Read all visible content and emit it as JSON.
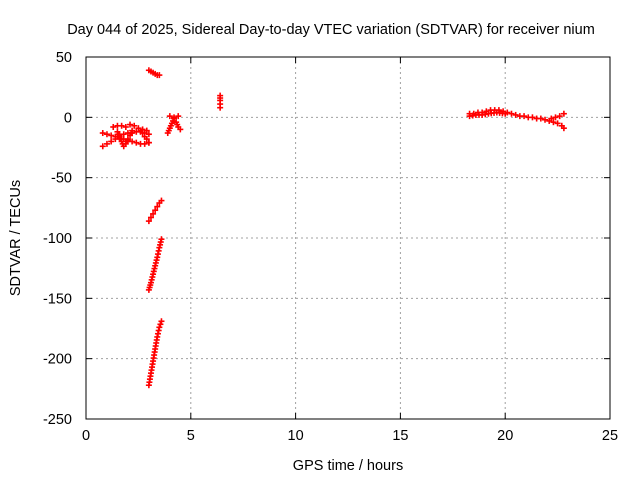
{
  "chart_data": {
    "type": "scatter",
    "title": "Day 044 of 2025, Sidereal Day-to-day VTEC variation (SDTVAR) for receiver nium",
    "xlabel": "GPS time / hours",
    "ylabel": "SDTVAR / TECUs",
    "xlim": [
      0,
      25
    ],
    "ylim": [
      -250,
      50
    ],
    "xticks": [
      0,
      5,
      10,
      15,
      20,
      25
    ],
    "yticks": [
      -250,
      -200,
      -150,
      -100,
      -50,
      0,
      50
    ],
    "grid": true,
    "marker": "+",
    "color": "#ff0000",
    "series": [
      {
        "name": "SDTVAR",
        "segments": [
          {
            "x": [
              0.8,
              1.0,
              1.2,
              1.4,
              1.6,
              1.8,
              2.0,
              2.2,
              2.4,
              2.6,
              2.8,
              3.0
            ],
            "y": [
              -24,
              -22,
              -20,
              -18,
              -17,
              -18,
              -19,
              -20,
              -21,
              -22,
              -22,
              -21
            ]
          },
          {
            "x": [
              0.8,
              1.0,
              1.2,
              1.4,
              1.6,
              1.8,
              2.0,
              2.2,
              2.4,
              2.6,
              2.8,
              3.0
            ],
            "y": [
              -13,
              -14,
              -15,
              -16,
              -15,
              -14,
              -13,
              -13,
              -12,
              -12,
              -13,
              -14
            ]
          },
          {
            "x": [
              1.3,
              1.5,
              1.7,
              1.9,
              2.1,
              2.3,
              2.5,
              2.7,
              2.9
            ],
            "y": [
              -8,
              -7,
              -7,
              -8,
              -6,
              -7,
              -9,
              -10,
              -11
            ]
          },
          {
            "x": [
              1.5,
              1.6,
              1.7,
              1.8,
              1.9,
              2.0,
              2.1,
              2.2
            ],
            "y": [
              -12,
              -16,
              -20,
              -24,
              -22,
              -18,
              -15,
              -11
            ]
          },
          {
            "x": [
              2.6,
              2.7,
              2.8,
              2.9,
              3.0
            ],
            "y": [
              -11,
              -13,
              -16,
              -18,
              -21
            ]
          },
          {
            "x": [
              3.0,
              3.1,
              3.2,
              3.3,
              3.4,
              3.5
            ],
            "y": [
              39,
              38,
              37,
              36,
              35,
              35
            ]
          },
          {
            "x": [
              3.0,
              3.1,
              3.2,
              3.3,
              3.4,
              3.5,
              3.6
            ],
            "y": [
              -86,
              -83,
              -80,
              -77,
              -74,
              -71,
              -69
            ]
          },
          {
            "x": [
              3.0,
              3.1,
              3.2,
              3.3,
              3.4,
              3.5,
              3.6
            ],
            "y": [
              -143,
              -137,
              -130,
              -123,
              -116,
              -108,
              -101
            ]
          },
          {
            "x": [
              3.0,
              3.1,
              3.2,
              3.3,
              3.4,
              3.5,
              3.6
            ],
            "y": [
              -222,
              -212,
              -202,
              -192,
              -182,
              -174,
              -169
            ]
          },
          {
            "x": [
              3.9,
              4.0,
              4.1,
              4.2,
              4.3,
              4.4,
              4.5
            ],
            "y": [
              -13,
              -9,
              -5,
              -1,
              -4,
              -8,
              -10
            ]
          },
          {
            "x": [
              4.0,
              4.2,
              4.4
            ],
            "y": [
              1,
              0,
              1
            ]
          },
          {
            "x": [
              6.4,
              6.4,
              6.4,
              6.4,
              6.4
            ],
            "y": [
              8,
              11,
              14,
              16,
              18
            ]
          },
          {
            "x": [
              18.3,
              18.5,
              18.7,
              18.9,
              19.1,
              19.3,
              19.5,
              19.7,
              19.9,
              20.1,
              20.3,
              20.5,
              20.7,
              20.9,
              21.1,
              21.3,
              21.5,
              21.7,
              21.9,
              22.1,
              22.3,
              22.5,
              22.7,
              22.8
            ],
            "y": [
              3,
              3,
              4,
              4,
              5,
              6,
              6,
              6,
              5,
              4,
              3,
              2,
              1,
              1,
              0,
              0,
              -1,
              -1,
              -2,
              -3,
              -4,
              -5,
              -7,
              -9
            ]
          },
          {
            "x": [
              22.2,
              22.4,
              22.6,
              22.8
            ],
            "y": [
              -1,
              0,
              1,
              3
            ]
          },
          {
            "x": [
              18.3,
              18.6,
              18.9,
              19.2,
              19.6,
              20.0
            ],
            "y": [
              1,
              2,
              2,
              3,
              4,
              3
            ]
          }
        ]
      }
    ]
  }
}
